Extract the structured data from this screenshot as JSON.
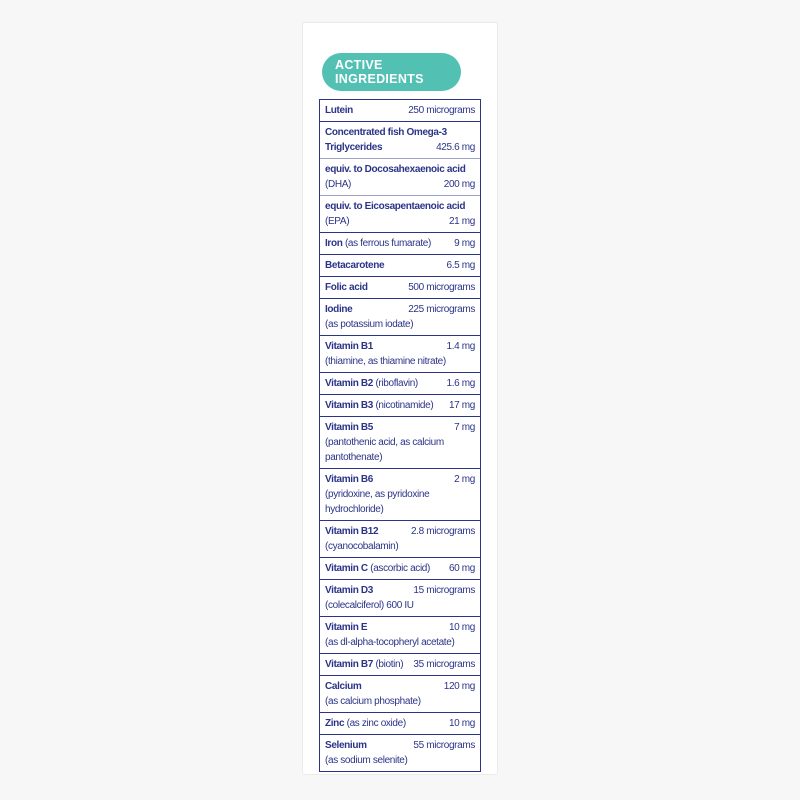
{
  "colors": {
    "accent_teal": "#52c1b3",
    "text_navy": "#2b3487",
    "page_bg": "#f7f7f8",
    "panel_bg": "#ffffff"
  },
  "header": {
    "line1": "ACTIVE",
    "line2": "INGREDIENTS"
  },
  "table": {
    "rows": [
      {
        "lines": [
          {
            "left": [
              {
                "t": "Lutein",
                "b": true
              }
            ],
            "right": "250 micrograms"
          }
        ]
      },
      {
        "lines": [
          {
            "left": [
              {
                "t": "Concentrated fish Omega-3",
                "b": true
              }
            ]
          },
          {
            "left": [
              {
                "t": "Triglycerides",
                "b": true
              }
            ],
            "right": "425.6 mg"
          }
        ]
      },
      {
        "sub": true,
        "lines": [
          {
            "left": [
              {
                "t": "equiv. to Docosahexaenoic acid",
                "b": true
              }
            ]
          },
          {
            "left": [
              {
                "t": "(DHA)",
                "b": false
              }
            ],
            "right": "200 mg"
          }
        ]
      },
      {
        "sub": true,
        "lines": [
          {
            "left": [
              {
                "t": "equiv. to Eicosapentaenoic acid",
                "b": true
              }
            ]
          },
          {
            "left": [
              {
                "t": "(EPA)",
                "b": false
              }
            ],
            "right": "21 mg"
          }
        ]
      },
      {
        "lines": [
          {
            "left": [
              {
                "t": "Iron",
                "b": true
              },
              {
                "t": "(as ferrous fumarate)",
                "b": false
              }
            ],
            "right": "9 mg"
          }
        ]
      },
      {
        "lines": [
          {
            "left": [
              {
                "t": "Betacarotene",
                "b": true
              }
            ],
            "right": "6.5 mg"
          }
        ]
      },
      {
        "lines": [
          {
            "left": [
              {
                "t": "Folic acid",
                "b": true
              }
            ],
            "right": "500 micrograms"
          }
        ]
      },
      {
        "lines": [
          {
            "left": [
              {
                "t": "Iodine",
                "b": true
              }
            ],
            "right": "225 micrograms"
          },
          {
            "left": [
              {
                "t": "(as potassium iodate)",
                "b": false
              }
            ]
          }
        ]
      },
      {
        "lines": [
          {
            "left": [
              {
                "t": "Vitamin B1",
                "b": true
              }
            ],
            "right": "1.4 mg"
          },
          {
            "left": [
              {
                "t": "(thiamine, as thiamine nitrate)",
                "b": false
              }
            ]
          }
        ]
      },
      {
        "lines": [
          {
            "left": [
              {
                "t": "Vitamin B2",
                "b": true
              },
              {
                "t": "(riboflavin)",
                "b": false
              }
            ],
            "right": "1.6 mg"
          }
        ]
      },
      {
        "lines": [
          {
            "left": [
              {
                "t": "Vitamin B3",
                "b": true
              },
              {
                "t": "(nicotinamide)",
                "b": false
              }
            ],
            "right": "17 mg"
          }
        ]
      },
      {
        "lines": [
          {
            "left": [
              {
                "t": "Vitamin B5",
                "b": true
              }
            ],
            "right": "7 mg"
          },
          {
            "left": [
              {
                "t": "(pantothenic acid, as calcium pantothenate)",
                "b": false
              }
            ]
          }
        ]
      },
      {
        "lines": [
          {
            "left": [
              {
                "t": "Vitamin B6",
                "b": true
              }
            ],
            "right": "2 mg"
          },
          {
            "left": [
              {
                "t": "(pyridoxine, as pyridoxine hydrochloride)",
                "b": false
              }
            ]
          }
        ]
      },
      {
        "lines": [
          {
            "left": [
              {
                "t": "Vitamin B12",
                "b": true
              }
            ],
            "right": "2.8 micrograms"
          },
          {
            "left": [
              {
                "t": "(cyanocobalamin)",
                "b": false
              }
            ]
          }
        ]
      },
      {
        "lines": [
          {
            "left": [
              {
                "t": "Vitamin C",
                "b": true
              },
              {
                "t": "(ascorbic acid)",
                "b": false
              }
            ],
            "right": "60 mg"
          }
        ]
      },
      {
        "lines": [
          {
            "left": [
              {
                "t": "Vitamin D3",
                "b": true
              }
            ],
            "right": "15 micrograms"
          },
          {
            "left": [
              {
                "t": "(colecalciferol) 600 IU",
                "b": false
              }
            ]
          }
        ]
      },
      {
        "lines": [
          {
            "left": [
              {
                "t": "Vitamin E",
                "b": true
              }
            ],
            "right": "10 mg"
          },
          {
            "left": [
              {
                "t": "(as dl-alpha-tocopheryl acetate)",
                "b": false
              }
            ]
          }
        ]
      },
      {
        "lines": [
          {
            "left": [
              {
                "t": "Vitamin B7",
                "b": true
              },
              {
                "t": "(biotin)",
                "b": false
              }
            ],
            "right": "35 micrograms"
          }
        ]
      },
      {
        "lines": [
          {
            "left": [
              {
                "t": "Calcium",
                "b": true
              }
            ],
            "right": "120 mg"
          },
          {
            "left": [
              {
                "t": "(as calcium phosphate)",
                "b": false
              }
            ]
          }
        ]
      },
      {
        "lines": [
          {
            "left": [
              {
                "t": "Zinc",
                "b": true
              },
              {
                "t": "(as zinc oxide)",
                "b": false
              }
            ],
            "right": "10 mg"
          }
        ]
      },
      {
        "lines": [
          {
            "left": [
              {
                "t": "Selenium",
                "b": true
              }
            ],
            "right": "55 micrograms"
          },
          {
            "left": [
              {
                "t": "(as sodium selenite)",
                "b": false
              }
            ]
          }
        ]
      }
    ]
  }
}
